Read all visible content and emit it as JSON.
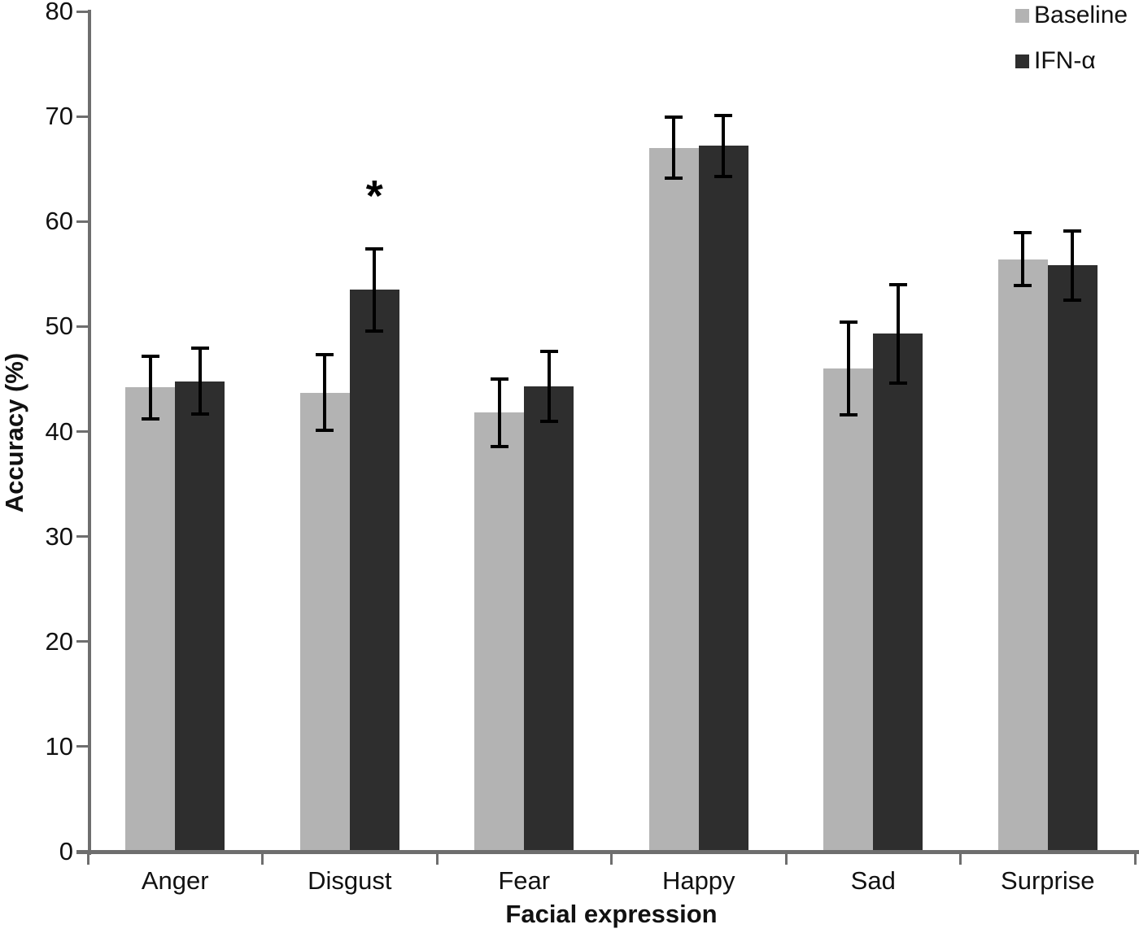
{
  "chart_data": {
    "type": "bar",
    "title": "",
    "categories": [
      "Anger",
      "Disgust",
      "Fear",
      "Happy",
      "Sad",
      "Surprise"
    ],
    "series": [
      {
        "name": "Baseline",
        "color": "#b3b3b3",
        "values": [
          44.2,
          43.7,
          41.8,
          67.0,
          46.0,
          56.4
        ],
        "errors": [
          3.0,
          3.6,
          3.2,
          2.9,
          4.4,
          2.5
        ]
      },
      {
        "name": "IFN-α",
        "color": "#2e2e2e",
        "values": [
          44.8,
          53.5,
          44.3,
          67.2,
          49.3,
          55.8
        ],
        "errors": [
          3.1,
          3.9,
          3.3,
          2.9,
          4.7,
          3.3
        ]
      }
    ],
    "xlabel": "Facial expression",
    "ylabel": "Accuracy (%)",
    "ylim": [
      0,
      80
    ],
    "yticks": [
      0,
      10,
      20,
      30,
      40,
      50,
      60,
      70,
      80
    ],
    "grid": false,
    "legend_position": "top-right",
    "annotations": [
      {
        "text": "*",
        "category": "Disgust",
        "series": "IFN-α",
        "category_index": 1,
        "series_index": 1
      }
    ],
    "error_bar_color": "#000000",
    "axis_color": "#6e6e6e",
    "text_color": "#111111"
  }
}
